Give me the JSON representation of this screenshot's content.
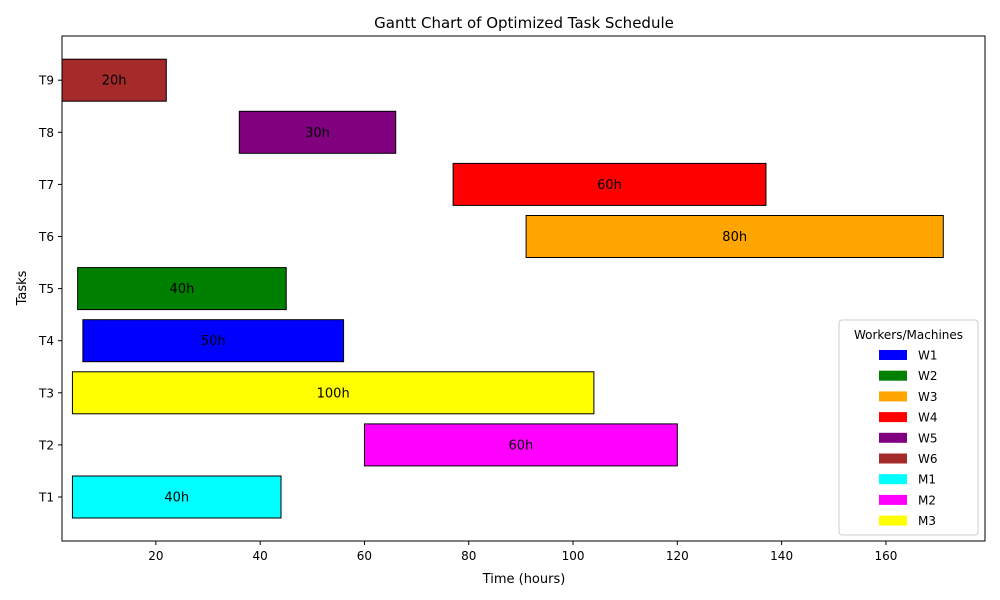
{
  "chart_data": {
    "type": "gantt",
    "title": "Gantt Chart of Optimized Task Schedule",
    "xlabel": "Time (hours)",
    "ylabel": "Tasks",
    "xlim": [
      2,
      179
    ],
    "x_ticks": [
      20,
      40,
      60,
      80,
      100,
      120,
      140,
      160
    ],
    "grid": false,
    "legend": {
      "title": "Workers/Machines",
      "placement": "lower-right",
      "entries": [
        {
          "name": "W1",
          "color": "#0000ff"
        },
        {
          "name": "W2",
          "color": "#008000"
        },
        {
          "name": "W3",
          "color": "#ffa500"
        },
        {
          "name": "W4",
          "color": "#ff0000"
        },
        {
          "name": "W5",
          "color": "#800080"
        },
        {
          "name": "W6",
          "color": "#a52a2a"
        },
        {
          "name": "M1",
          "color": "#00ffff"
        },
        {
          "name": "M2",
          "color": "#ff00ff"
        },
        {
          "name": "M3",
          "color": "#ffff00"
        }
      ]
    },
    "tasks": [
      {
        "task": "T1",
        "start": 4,
        "duration": 40,
        "label": "40h",
        "resource": "M1",
        "color": "#00ffff"
      },
      {
        "task": "T2",
        "start": 60,
        "duration": 60,
        "label": "60h",
        "resource": "M2",
        "color": "#ff00ff"
      },
      {
        "task": "T3",
        "start": 4,
        "duration": 100,
        "label": "100h",
        "resource": "M3",
        "color": "#ffff00"
      },
      {
        "task": "T4",
        "start": 6,
        "duration": 50,
        "label": "50h",
        "resource": "W1",
        "color": "#0000ff"
      },
      {
        "task": "T5",
        "start": 5,
        "duration": 40,
        "label": "40h",
        "resource": "W2",
        "color": "#008000"
      },
      {
        "task": "T6",
        "start": 91,
        "duration": 80,
        "label": "80h",
        "resource": "W3",
        "color": "#ffa500"
      },
      {
        "task": "T7",
        "start": 77,
        "duration": 60,
        "label": "60h",
        "resource": "W4",
        "color": "#ff0000"
      },
      {
        "task": "T8",
        "start": 36,
        "duration": 30,
        "label": "30h",
        "resource": "W5",
        "color": "#800080"
      },
      {
        "task": "T9",
        "start": 2,
        "duration": 20,
        "label": "20h",
        "resource": "W6",
        "color": "#a52a2a"
      }
    ]
  }
}
